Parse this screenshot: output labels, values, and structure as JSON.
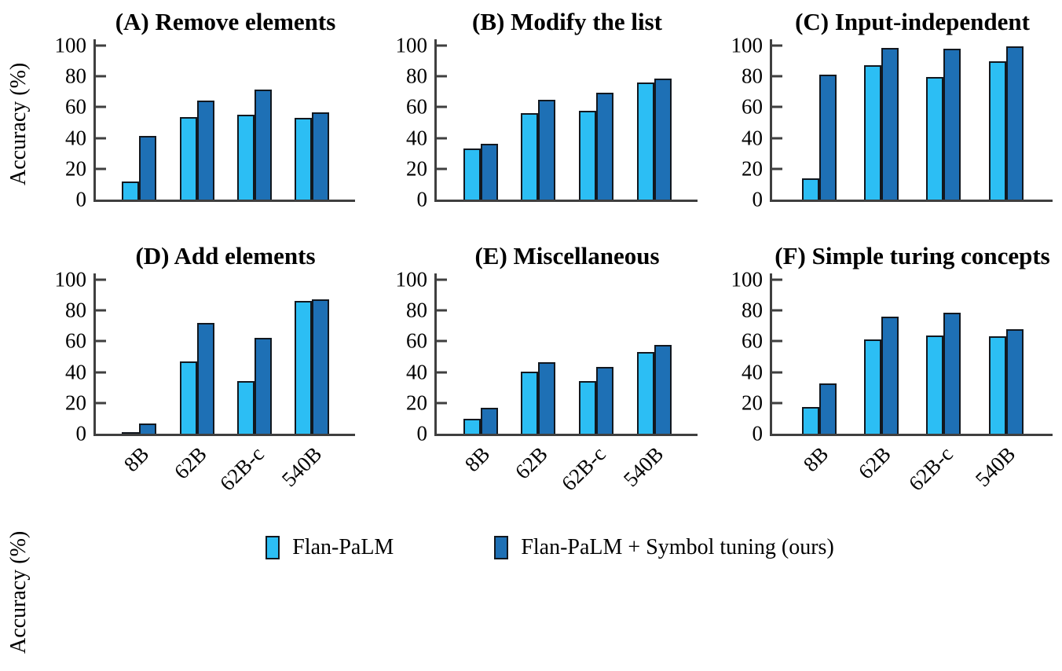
{
  "figure": {
    "ylabel": "Accuracy (%)",
    "colors": {
      "flan_palm": "#2cbef4",
      "symbol_tuning": "#1e70b5",
      "bar_edge": "#12181f",
      "axis": "#3f3f3f"
    },
    "legend": [
      {
        "label": "Flan-PaLM",
        "color": "#2cbef4"
      },
      {
        "label": "Flan-PaLM + Symbol tuning (ours)",
        "color": "#1e70b5"
      }
    ]
  },
  "chart_data": [
    {
      "type": "bar",
      "title": "(A) Remove elements",
      "categories": [
        "8B",
        "62B",
        "62B-c",
        "540B"
      ],
      "series": [
        {
          "name": "Flan-PaLM",
          "values": [
            11.5,
            53.5,
            55,
            53
          ]
        },
        {
          "name": "Flan-PaLM + Symbol tuning (ours)",
          "values": [
            41.5,
            64.5,
            71.5,
            56.5
          ]
        }
      ],
      "ylabel": "Accuracy (%)",
      "ylim": [
        0,
        100
      ],
      "yticks": [
        0,
        20,
        40,
        60,
        80,
        100
      ],
      "grid": false,
      "show_x_tick_labels": false,
      "show_y_axis_label": true
    },
    {
      "type": "bar",
      "title": "(B) Modify the list",
      "categories": [
        "8B",
        "62B",
        "62B-c",
        "540B"
      ],
      "series": [
        {
          "name": "Flan-PaLM",
          "values": [
            33,
            56,
            57.5,
            76
          ]
        },
        {
          "name": "Flan-PaLM + Symbol tuning (ours)",
          "values": [
            36,
            65,
            69.5,
            78.5
          ]
        }
      ],
      "ylabel": "Accuracy (%)",
      "ylim": [
        0,
        100
      ],
      "yticks": [
        0,
        20,
        40,
        60,
        80,
        100
      ],
      "grid": false,
      "show_x_tick_labels": false,
      "show_y_axis_label": false
    },
    {
      "type": "bar",
      "title": "(C) Input-independent",
      "categories": [
        "8B",
        "62B",
        "62B-c",
        "540B"
      ],
      "series": [
        {
          "name": "Flan-PaLM",
          "values": [
            14,
            87,
            79.5,
            90
          ]
        },
        {
          "name": "Flan-PaLM + Symbol tuning (ours)",
          "values": [
            81,
            98.5,
            98,
            99.5
          ]
        }
      ],
      "ylabel": "Accuracy (%)",
      "ylim": [
        0,
        100
      ],
      "yticks": [
        0,
        20,
        40,
        60,
        80,
        100
      ],
      "grid": false,
      "show_x_tick_labels": false,
      "show_y_axis_label": false
    },
    {
      "type": "bar",
      "title": "(D) Add elements",
      "categories": [
        "8B",
        "62B",
        "62B-c",
        "540B"
      ],
      "series": [
        {
          "name": "Flan-PaLM",
          "values": [
            0.5,
            47,
            34,
            86
          ]
        },
        {
          "name": "Flan-PaLM + Symbol tuning (ours)",
          "values": [
            6.5,
            72,
            62.5,
            87.5
          ]
        }
      ],
      "ylabel": "Accuracy (%)",
      "ylim": [
        0,
        100
      ],
      "yticks": [
        0,
        20,
        40,
        60,
        80,
        100
      ],
      "grid": false,
      "show_x_tick_labels": true,
      "show_y_axis_label": true
    },
    {
      "type": "bar",
      "title": "(E) Miscellaneous",
      "categories": [
        "8B",
        "62B",
        "62B-c",
        "540B"
      ],
      "series": [
        {
          "name": "Flan-PaLM",
          "values": [
            9.5,
            40.5,
            34,
            53
          ]
        },
        {
          "name": "Flan-PaLM + Symbol tuning (ours)",
          "values": [
            17,
            46.5,
            43.5,
            57.5
          ]
        }
      ],
      "ylabel": "Accuracy (%)",
      "ylim": [
        0,
        100
      ],
      "yticks": [
        0,
        20,
        40,
        60,
        80,
        100
      ],
      "grid": false,
      "show_x_tick_labels": true,
      "show_y_axis_label": false
    },
    {
      "type": "bar",
      "title": "(F) Simple turing concepts",
      "categories": [
        "8B",
        "62B",
        "62B-c",
        "540B"
      ],
      "series": [
        {
          "name": "Flan-PaLM",
          "values": [
            17.5,
            61,
            64,
            63.5
          ]
        },
        {
          "name": "Flan-PaLM + Symbol tuning (ours)",
          "values": [
            32.5,
            76,
            78.5,
            68
          ]
        }
      ],
      "ylabel": "Accuracy (%)",
      "ylim": [
        0,
        100
      ],
      "yticks": [
        0,
        20,
        40,
        60,
        80,
        100
      ],
      "grid": false,
      "show_x_tick_labels": true,
      "show_y_axis_label": false
    }
  ]
}
